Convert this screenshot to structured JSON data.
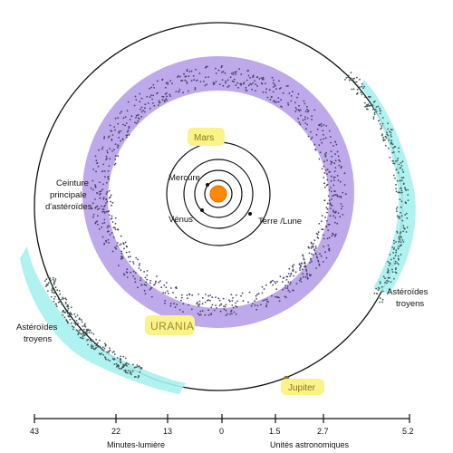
{
  "labels": {
    "mercure": "Mercure",
    "venus": "Vénus",
    "terre": "Terre /Lune",
    "mars": "Mars",
    "jupiter": "Jupiter",
    "urania": "URANIA",
    "ceinture": [
      "Ceinture",
      "principale",
      "d'astéroïdes"
    ],
    "troyens_left": [
      "Astéroïdes",
      "troyens"
    ],
    "troyens_right": [
      "Astéroïdes",
      "troyens"
    ]
  },
  "scale": {
    "left_title": "Minutes-lumière",
    "right_title": "Unités astronomiques",
    "left_ticks": [
      "43",
      "22",
      "13",
      "0"
    ],
    "right_ticks": [
      "1.5",
      "2.7",
      "5.2"
    ]
  },
  "colors": {
    "sun": "#ff8a00",
    "belt": "#b39ae8",
    "trojans": "#a6f1ee",
    "highlight": "#fbf28a",
    "orbit": "#111111",
    "dots": "#4a3f6b"
  }
}
